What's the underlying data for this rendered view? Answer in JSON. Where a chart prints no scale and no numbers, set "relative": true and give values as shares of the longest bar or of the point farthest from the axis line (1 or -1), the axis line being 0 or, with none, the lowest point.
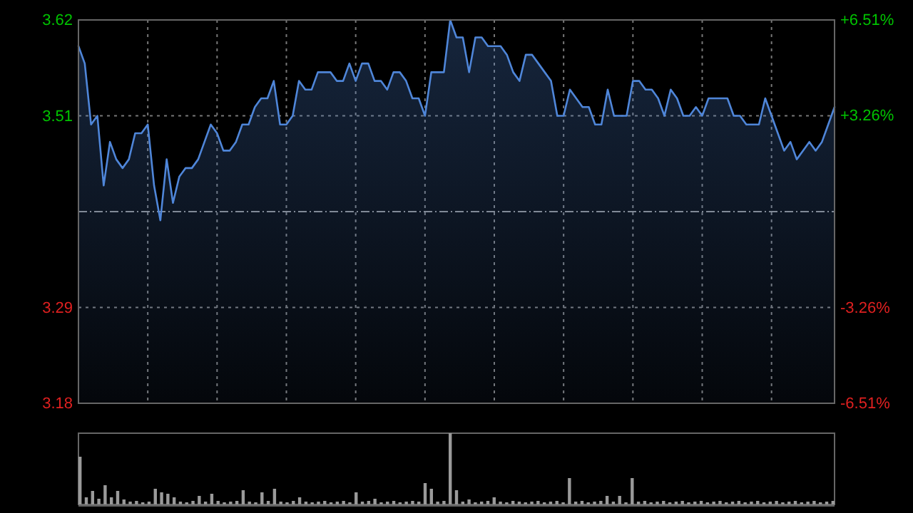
{
  "chart_data": [
    {
      "type": "area",
      "color": "#4f86d9",
      "categories": [
        null,
        null,
        null,
        null,
        null,
        null,
        null,
        null,
        null,
        null,
        null,
        null,
        null,
        null,
        null,
        null,
        null,
        null,
        null,
        null,
        null,
        null,
        null,
        null,
        null,
        null,
        null,
        null,
        null,
        null,
        null,
        null,
        null,
        null,
        null,
        null,
        null,
        null,
        null,
        null,
        null,
        null,
        null,
        null,
        null,
        null,
        null,
        null,
        null,
        null,
        null,
        null,
        null,
        null,
        null,
        null,
        null,
        null,
        null,
        null,
        null,
        null,
        null,
        null,
        null,
        null,
        null,
        null,
        null,
        null,
        null,
        null,
        null,
        null,
        null,
        null,
        null,
        null,
        null,
        null,
        null,
        null,
        null,
        null,
        null,
        null,
        null,
        null,
        null,
        null,
        null,
        null,
        null,
        null,
        null,
        null,
        null,
        null,
        null,
        null,
        null,
        null,
        null,
        null,
        null,
        null,
        null,
        null,
        null,
        null,
        null,
        null,
        null,
        null,
        null,
        null,
        null,
        null,
        null,
        null,
        null
      ],
      "values": [
        3.59,
        3.57,
        3.5,
        3.51,
        3.43,
        3.48,
        3.46,
        3.45,
        3.46,
        3.49,
        3.49,
        3.5,
        3.43,
        3.39,
        3.46,
        3.41,
        3.44,
        3.45,
        3.45,
        3.46,
        3.48,
        3.5,
        3.49,
        3.47,
        3.47,
        3.48,
        3.5,
        3.5,
        3.52,
        3.53,
        3.53,
        3.55,
        3.5,
        3.5,
        3.51,
        3.55,
        3.54,
        3.54,
        3.56,
        3.56,
        3.56,
        3.55,
        3.55,
        3.57,
        3.55,
        3.57,
        3.57,
        3.55,
        3.55,
        3.54,
        3.56,
        3.56,
        3.55,
        3.53,
        3.53,
        3.51,
        3.56,
        3.56,
        3.56,
        3.62,
        3.6,
        3.6,
        3.56,
        3.6,
        3.6,
        3.59,
        3.59,
        3.59,
        3.58,
        3.56,
        3.55,
        3.58,
        3.58,
        3.57,
        3.56,
        3.55,
        3.51,
        3.51,
        3.54,
        3.53,
        3.52,
        3.52,
        3.5,
        3.5,
        3.54,
        3.51,
        3.51,
        3.51,
        3.55,
        3.55,
        3.54,
        3.54,
        3.53,
        3.51,
        3.54,
        3.53,
        3.51,
        3.51,
        3.52,
        3.51,
        3.53,
        3.53,
        3.53,
        3.53,
        3.51,
        3.51,
        3.5,
        3.5,
        3.5,
        3.53,
        3.51,
        3.49,
        3.47,
        3.48,
        3.46,
        3.47,
        3.48,
        3.47,
        3.48,
        3.5,
        3.52
      ],
      "ylim": [
        3.18,
        3.62
      ],
      "yticks": [
        3.18,
        3.29,
        3.51,
        3.62
      ],
      "y2lim": [
        -6.51,
        6.51
      ],
      "y2ticks": [
        {
          "value": -6.51,
          "label": "-6.51%"
        },
        {
          "value": -3.26,
          "label": "-3.26%"
        },
        {
          "value": 3.26,
          "label": "+3.26%"
        },
        {
          "value": 6.51,
          "label": "+6.51%"
        }
      ],
      "ref_lines": [
        {
          "axis": "y",
          "value": 3.4,
          "color": "#8a8a8a",
          "line_style": "dashed"
        }
      ],
      "grid": true,
      "tick_labels": "y"
    },
    {
      "type": "bar",
      "relative": true,
      "color": "#9a9a9a",
      "categories": [
        null,
        null,
        null,
        null,
        null,
        null,
        null,
        null,
        null,
        null,
        null,
        null,
        null,
        null,
        null,
        null,
        null,
        null,
        null,
        null,
        null,
        null,
        null,
        null,
        null,
        null,
        null,
        null,
        null,
        null,
        null,
        null,
        null,
        null,
        null,
        null,
        null,
        null,
        null,
        null,
        null,
        null,
        null,
        null,
        null,
        null,
        null,
        null,
        null,
        null,
        null,
        null,
        null,
        null,
        null,
        null,
        null,
        null,
        null,
        null,
        null,
        null,
        null,
        null,
        null,
        null,
        null,
        null,
        null,
        null,
        null,
        null,
        null,
        null,
        null,
        null,
        null,
        null,
        null,
        null,
        null,
        null,
        null,
        null,
        null,
        null,
        null,
        null,
        null,
        null,
        null,
        null,
        null,
        null,
        null,
        null,
        null,
        null,
        null,
        null,
        null,
        null,
        null,
        null,
        null,
        null,
        null,
        null,
        null,
        null,
        null,
        null,
        null,
        null,
        null,
        null,
        null,
        null,
        null,
        null,
        null
      ],
      "values": [
        0.67,
        0.1,
        0.19,
        0.08,
        0.27,
        0.1,
        0.19,
        0.07,
        0.04,
        0.05,
        0.03,
        0.04,
        0.22,
        0.17,
        0.15,
        0.1,
        0.04,
        0.03,
        0.05,
        0.12,
        0.04,
        0.15,
        0.05,
        0.03,
        0.04,
        0.05,
        0.2,
        0.04,
        0.03,
        0.17,
        0.05,
        0.22,
        0.04,
        0.03,
        0.05,
        0.1,
        0.04,
        0.03,
        0.04,
        0.05,
        0.03,
        0.04,
        0.05,
        0.03,
        0.17,
        0.04,
        0.05,
        0.08,
        0.03,
        0.04,
        0.05,
        0.03,
        0.04,
        0.05,
        0.04,
        0.3,
        0.22,
        0.04,
        0.05,
        1,
        0.2,
        0.04,
        0.07,
        0.03,
        0.04,
        0.05,
        0.1,
        0.04,
        0.03,
        0.05,
        0.04,
        0.03,
        0.04,
        0.05,
        0.03,
        0.04,
        0.05,
        0.03,
        0.37,
        0.04,
        0.05,
        0.03,
        0.04,
        0.05,
        0.12,
        0.04,
        0.12,
        0.03,
        0.37,
        0.04,
        0.05,
        0.03,
        0.04,
        0.05,
        0.03,
        0.04,
        0.05,
        0.03,
        0.04,
        0.05,
        0.03,
        0.04,
        0.05,
        0.03,
        0.04,
        0.05,
        0.03,
        0.04,
        0.05,
        0.03,
        0.04,
        0.05,
        0.03,
        0.04,
        0.05,
        0.03,
        0.04,
        0.05,
        0.03,
        0.04,
        0.05
      ]
    }
  ]
}
